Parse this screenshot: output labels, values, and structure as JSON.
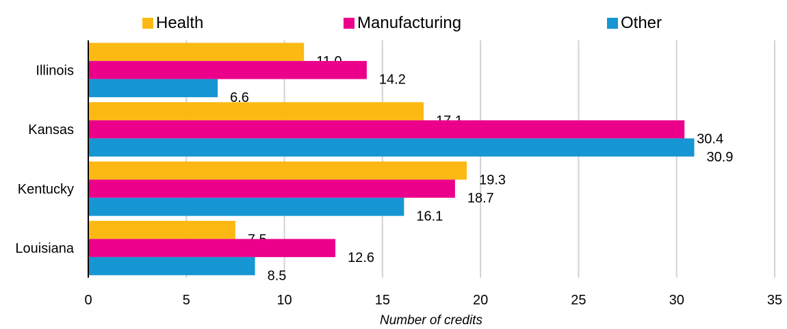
{
  "chart_data": {
    "type": "bar",
    "orientation": "horizontal",
    "categories": [
      "Illinois",
      "Kansas",
      "Kentucky",
      "Louisiana"
    ],
    "series": [
      {
        "name": "Health",
        "color": "#FDB913",
        "values": [
          11.0,
          17.1,
          19.3,
          7.5
        ]
      },
      {
        "name": "Manufacturing",
        "color": "#EC008B",
        "values": [
          14.2,
          30.4,
          18.7,
          12.6
        ]
      },
      {
        "name": "Other",
        "color": "#1696D2",
        "values": [
          6.6,
          30.9,
          16.1,
          8.5
        ]
      }
    ],
    "xlabel": "Number of credits",
    "xlim": [
      0,
      35
    ],
    "xticks": [
      0,
      5,
      10,
      15,
      20,
      25,
      30,
      35
    ],
    "grid": "vertical",
    "legend_position": "top"
  }
}
